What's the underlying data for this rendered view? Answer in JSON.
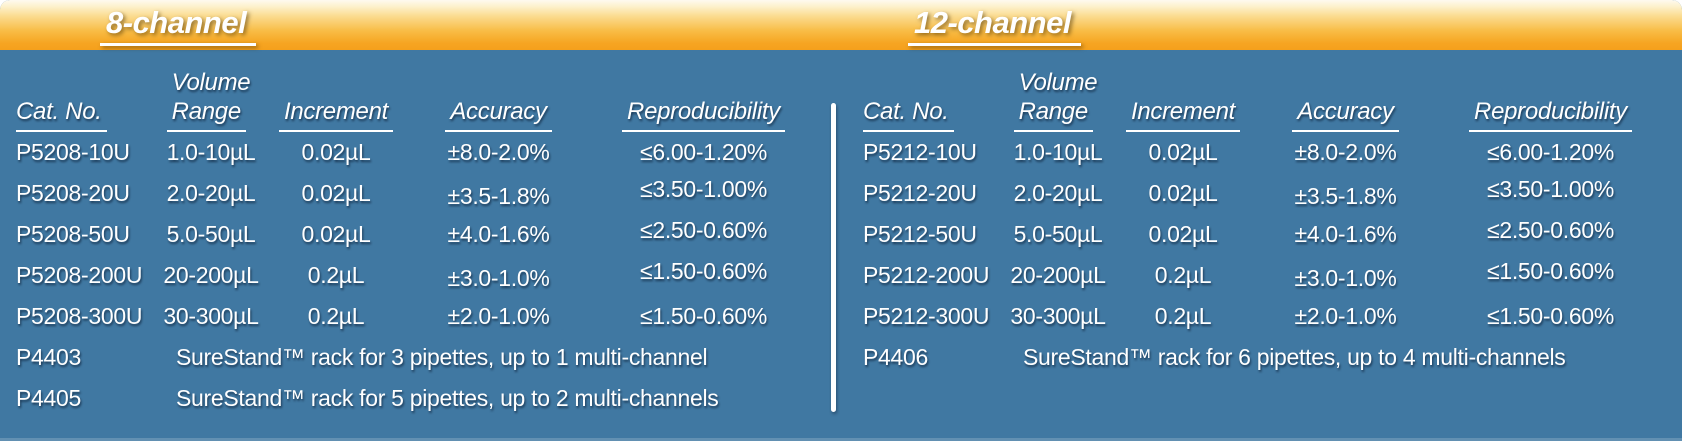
{
  "palette": {
    "table_background": "#4078a2",
    "banner_gradient_top": "#fefaf0",
    "banner_gradient_bottom": "#f5a01c",
    "text_color": "#ffffff",
    "divider_color": "#ffffff"
  },
  "sections": [
    {
      "title": "8-channel",
      "headers": {
        "cat": "Cat. No.",
        "vol1": "Volume",
        "vol2": "Range",
        "inc": "Increment",
        "acc": "Accuracy",
        "rep": "Reproducibility"
      },
      "rows": [
        [
          "P5208-10U",
          "1.0-10µL",
          "0.02µL",
          "±8.0-2.0%",
          "≤6.00-1.20%"
        ],
        [
          "P5208-20U",
          "2.0-20µL",
          "0.02µL",
          "±3.5-1.8%",
          "≤3.50-1.00%"
        ],
        [
          "P5208-50U",
          "5.0-50µL",
          "0.02µL",
          "±4.0-1.6%",
          "≤2.50-0.60%"
        ],
        [
          "P5208-200U",
          "20-200µL",
          "0.2µL",
          "±3.0-1.0%",
          "≤1.50-0.60%"
        ],
        [
          "P5208-300U",
          "30-300µL",
          "0.2µL",
          "±2.0-1.0%",
          "≤1.50-0.60%"
        ]
      ],
      "racks": [
        {
          "cat": "P4403",
          "desc": "SureStand™ rack for 3 pipettes, up to 1 multi-channel"
        },
        {
          "cat": "P4405",
          "desc": "SureStand™ rack for 5 pipettes, up to 2 multi-channels"
        }
      ]
    },
    {
      "title": "12-channel",
      "headers": {
        "cat": "Cat. No.",
        "vol1": "Volume",
        "vol2": "Range",
        "inc": "Increment",
        "acc": "Accuracy",
        "rep": "Reproducibility"
      },
      "rows": [
        [
          "P5212-10U",
          "1.0-10µL",
          "0.02µL",
          "±8.0-2.0%",
          "≤6.00-1.20%"
        ],
        [
          "P5212-20U",
          "2.0-20µL",
          "0.02µL",
          "±3.5-1.8%",
          "≤3.50-1.00%"
        ],
        [
          "P5212-50U",
          "5.0-50µL",
          "0.02µL",
          "±4.0-1.6%",
          "≤2.50-0.60%"
        ],
        [
          "P5212-200U",
          "20-200µL",
          "0.2µL",
          "±3.0-1.0%",
          "≤1.50-0.60%"
        ],
        [
          "P5212-300U",
          "30-300µL",
          "0.2µL",
          "±2.0-1.0%",
          "≤1.50-0.60%"
        ]
      ],
      "racks": [
        {
          "cat": "P4406",
          "desc": "SureStand™ rack for 6 pipettes, up to 4 multi-channels"
        }
      ]
    }
  ]
}
